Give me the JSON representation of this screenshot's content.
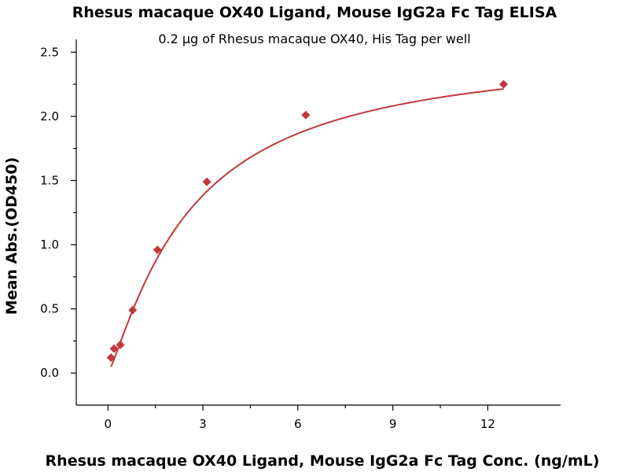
{
  "chart_data": {
    "type": "scatter",
    "title": "Rhesus macaque OX40 Ligand, Mouse IgG2a Fc Tag ELISA",
    "subtitle": "0.2 μg of Rhesus macaque OX40, His Tag per well",
    "xlabel": "Rhesus macaque OX40 Ligand, Mouse IgG2a Fc Tag Conc. (ng/mL)",
    "ylabel": "Mean Abs.(OD450)",
    "xlim": [
      -1,
      14.3
    ],
    "ylim": [
      -0.25,
      2.6
    ],
    "xticks": [
      0,
      3,
      6,
      9,
      12
    ],
    "xtick_labels": [
      "0",
      "3",
      "6",
      "9",
      "12"
    ],
    "yticks": [
      0.0,
      0.5,
      1.0,
      1.5,
      2.0,
      2.5
    ],
    "ytick_labels": [
      "0.0",
      "0.5",
      "1.0",
      "1.5",
      "2.0",
      "2.5"
    ],
    "grid": false,
    "series": [
      {
        "name": "Mean Abs.(OD450)",
        "x": [
          0.098,
          0.195,
          0.391,
          0.781,
          1.563,
          3.125,
          6.25,
          12.5
        ],
        "y": [
          0.12,
          0.19,
          0.22,
          0.49,
          0.96,
          1.49,
          2.01,
          2.25
        ],
        "color": "#c0393b",
        "marker": "diamond"
      }
    ],
    "fit_curve": {
      "type": "4-parameter logistic",
      "bottom": 0.0,
      "top": 2.55,
      "ec50": 2.6,
      "hill": 1.2,
      "color": "#c0393b"
    }
  }
}
